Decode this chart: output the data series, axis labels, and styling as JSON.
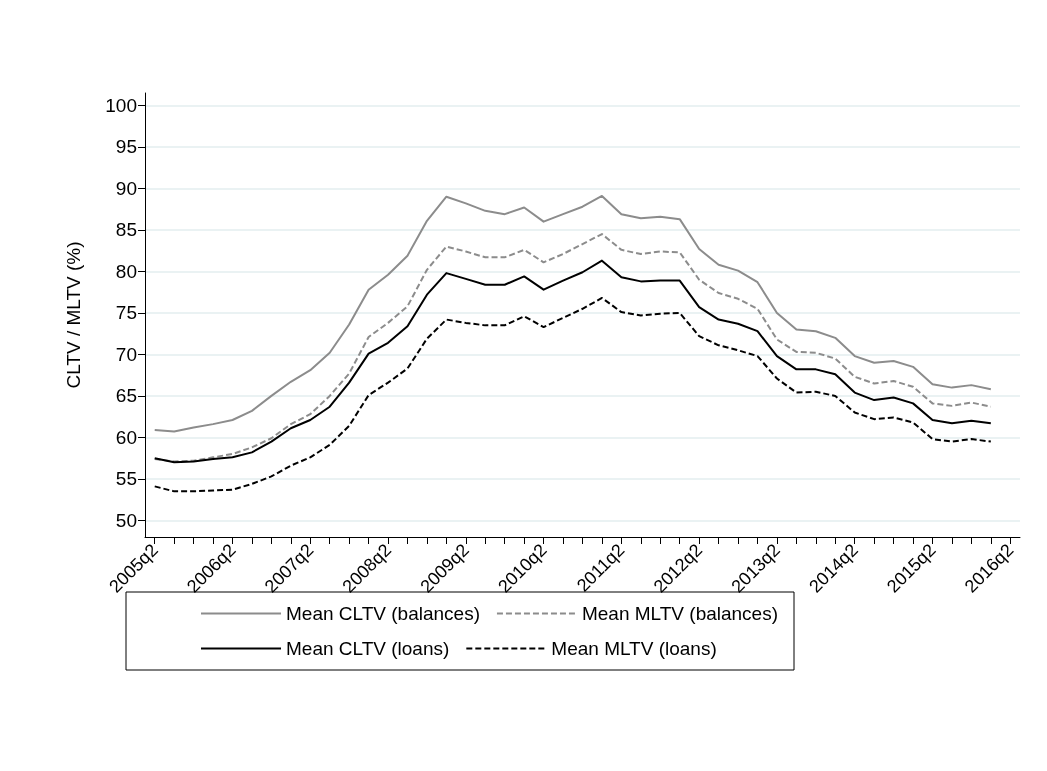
{
  "chart_data": {
    "type": "line",
    "ylabel": "CLTV / MLTV (%)",
    "categories": [
      "2005q2",
      null,
      null,
      null,
      "2006q2",
      null,
      null,
      null,
      "2007q2",
      null,
      null,
      null,
      "2008q2",
      null,
      null,
      null,
      "2009q2",
      null,
      null,
      null,
      "2010q2",
      null,
      null,
      null,
      "2011q2",
      null,
      null,
      null,
      "2012q2",
      null,
      null,
      null,
      "2013q2",
      null,
      null,
      null,
      "2014q2",
      null,
      null,
      null,
      "2015q2",
      null,
      null,
      null,
      "2016q2"
    ],
    "series": [
      {
        "name": "Mean CLTV (balances)",
        "color": "#8c8c8c",
        "line_style": "solid",
        "values": [
          60.9,
          60.7,
          61.2,
          61.6,
          62.1,
          63.2,
          65.0,
          66.7,
          68.1,
          70.2,
          73.6,
          77.8,
          79.6,
          81.9,
          86.1,
          89.0,
          88.2,
          87.3,
          86.9,
          87.7,
          86.0,
          86.9,
          87.8,
          89.1,
          86.9,
          86.4,
          86.6,
          86.3,
          82.7,
          80.8,
          80.1,
          78.7,
          75.0,
          73.0,
          72.8,
          72.0,
          69.8,
          69.0,
          69.2,
          68.5,
          66.4,
          66.0,
          66.3,
          65.8,
          null
        ]
      },
      {
        "name": "Mean MLTV (balances)",
        "color": "#8c8c8c",
        "line_style": "dashed",
        "values": [
          57.4,
          57.1,
          57.2,
          57.6,
          58.0,
          58.8,
          59.9,
          61.6,
          62.8,
          65.0,
          67.7,
          72.1,
          73.8,
          75.8,
          80.2,
          83.0,
          82.4,
          81.7,
          81.7,
          82.6,
          81.1,
          82.1,
          83.3,
          84.5,
          82.6,
          82.1,
          82.4,
          82.3,
          79.0,
          77.4,
          76.7,
          75.5,
          71.8,
          70.3,
          70.2,
          69.5,
          67.3,
          66.5,
          66.8,
          66.1,
          64.1,
          63.8,
          64.2,
          63.7,
          null
        ]
      },
      {
        "name": "Mean CLTV (loans)",
        "color": "#000000",
        "line_style": "solid",
        "values": [
          57.5,
          57.0,
          57.1,
          57.4,
          57.6,
          58.2,
          59.5,
          61.1,
          62.1,
          63.7,
          66.6,
          70.1,
          71.4,
          73.4,
          77.2,
          79.8,
          79.1,
          78.4,
          78.4,
          79.4,
          77.8,
          78.9,
          79.9,
          81.3,
          79.3,
          78.8,
          78.9,
          78.9,
          75.7,
          74.2,
          73.7,
          72.8,
          69.8,
          68.2,
          68.2,
          67.6,
          65.4,
          64.5,
          64.8,
          64.1,
          62.1,
          61.7,
          62.0,
          61.7,
          null
        ]
      },
      {
        "name": "Mean MLTV (loans)",
        "color": "#000000",
        "line_style": "dashed",
        "values": [
          54.1,
          53.5,
          53.5,
          53.6,
          53.7,
          54.4,
          55.3,
          56.6,
          57.6,
          59.1,
          61.4,
          65.1,
          66.6,
          68.3,
          71.9,
          74.2,
          73.8,
          73.5,
          73.5,
          74.6,
          73.3,
          74.4,
          75.5,
          76.8,
          75.1,
          74.7,
          74.9,
          75.0,
          72.2,
          71.1,
          70.5,
          69.8,
          67.1,
          65.4,
          65.5,
          65.0,
          63.0,
          62.2,
          62.4,
          61.8,
          59.8,
          59.5,
          59.8,
          59.5,
          null
        ]
      }
    ],
    "ylim": [
      48,
      101.5
    ],
    "yticks": [
      50,
      55,
      60,
      65,
      70,
      75,
      80,
      85,
      90,
      95,
      100
    ],
    "grid": "y",
    "legend": "bottom",
    "marker": "none"
  }
}
